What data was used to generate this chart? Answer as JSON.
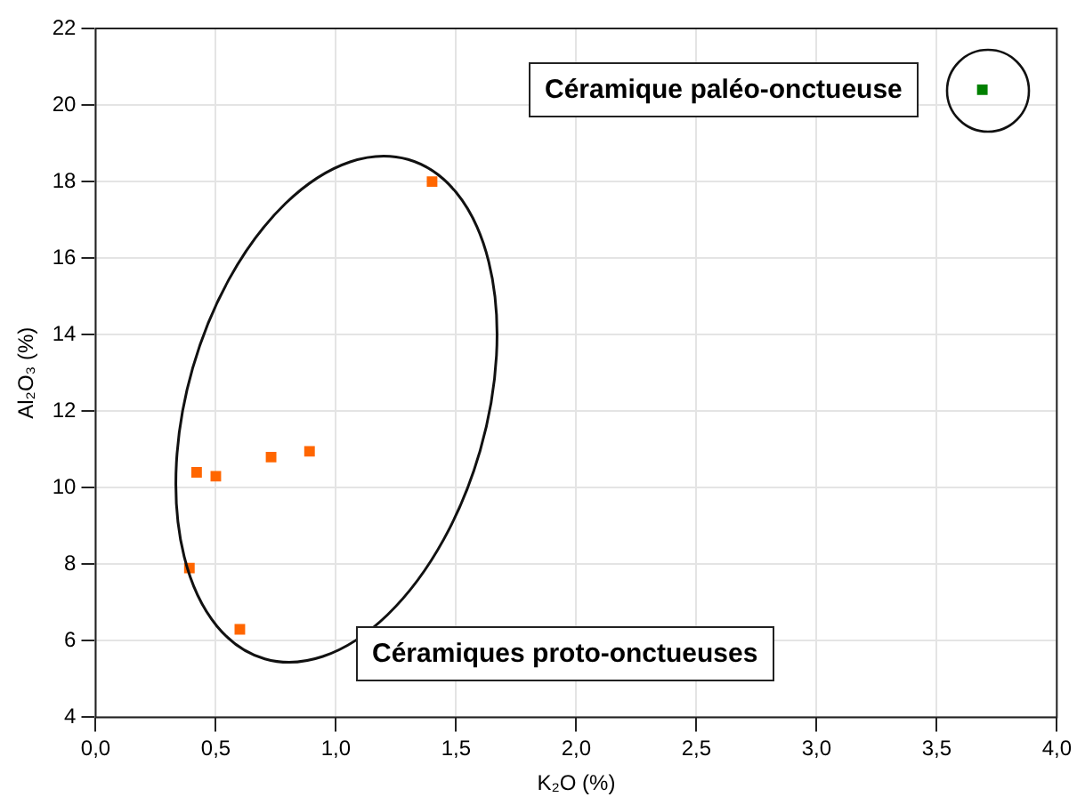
{
  "chart_data": {
    "type": "scatter",
    "xlabel": "K₂O (%)",
    "ylabel": "Al₂O₃ (%)",
    "series": [
      {
        "color": "#ff6600",
        "x": [
          1.4,
          0.42,
          0.5,
          0.73,
          0.89,
          0.39,
          0.6
        ],
        "values": [
          18.0,
          10.4,
          10.3,
          10.8,
          10.95,
          7.9,
          6.3
        ]
      },
      {
        "color": "#008000",
        "x": [
          3.69
        ],
        "values": [
          20.4
        ]
      }
    ],
    "xlim": [
      0,
      4
    ],
    "ylim": [
      4,
      22
    ],
    "xticks": [
      {
        "value": 0,
        "label": "0,0"
      },
      {
        "value": 0.5,
        "label": "0,5"
      },
      {
        "value": 1,
        "label": "1,0"
      },
      {
        "value": 1.5,
        "label": "1,5"
      },
      {
        "value": 2,
        "label": "2,0"
      },
      {
        "value": 2.5,
        "label": "2,5"
      },
      {
        "value": 3,
        "label": "3,0"
      },
      {
        "value": 3.5,
        "label": "3,5"
      },
      {
        "value": 4,
        "label": "4,0"
      }
    ],
    "yticks": [
      4,
      6,
      8,
      10,
      12,
      14,
      16,
      18,
      20,
      22
    ],
    "grid": true,
    "legend": false,
    "marker": "square",
    "annotations": [
      "Céramique paléo-onctueuse",
      "Céramiques proto-onctueuses"
    ]
  }
}
